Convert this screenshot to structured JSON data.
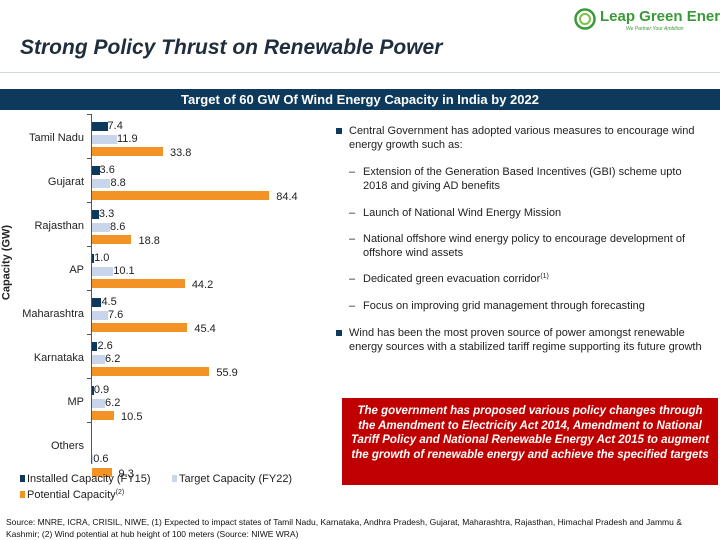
{
  "header": {
    "title": "Strong Policy Thrust on Renewable Power",
    "logo_name": "Leap Green Energy",
    "logo_tagline": "We Partner Your Ambition"
  },
  "banner": "Target of 60 GW Of Wind Energy Capacity in India by 2022",
  "chart_data": {
    "type": "bar",
    "orientation": "horizontal",
    "ylabel": "Capacity (GW)",
    "categories": [
      "Tamil Nadu",
      "Gujarat",
      "Rajasthan",
      "AP",
      "Maharashtra",
      "Karnataka",
      "MP",
      "Others"
    ],
    "series": [
      {
        "name": "Installed Capacity (FY15)",
        "color": "#0d3a5c",
        "values": [
          7.4,
          3.6,
          3.3,
          1.0,
          4.5,
          2.6,
          0.9,
          null
        ]
      },
      {
        "name": "Target Capacity (FY22)",
        "color": "#c9d5ea",
        "values": [
          11.9,
          8.8,
          8.6,
          10.1,
          7.6,
          6.2,
          6.2,
          0.6
        ]
      },
      {
        "name": "Potential Capacity",
        "name_superscript": "(2)",
        "color": "#f39325",
        "values": [
          33.8,
          84.4,
          18.8,
          44.2,
          45.4,
          55.9,
          10.5,
          9.3
        ]
      }
    ]
  },
  "bullets": [
    {
      "text": "Central Government has adopted various measures to encourage wind energy growth such as:"
    },
    {
      "text": "Wind has been the most proven source of power amongst renewable energy sources with a stabilized tariff regime supporting its future growth"
    }
  ],
  "sub_bullets": [
    {
      "text": "Extension of the Generation Based Incentives (GBI) scheme upto 2018 and giving AD benefits"
    },
    {
      "text": "Launch of National Wind Energy Mission"
    },
    {
      "text": "National offshore wind energy policy to encourage development of offshore wind assets"
    },
    {
      "text": "Dedicated green evacuation corridor",
      "sup": "(1)"
    },
    {
      "text": "Focus on improving grid management through forecasting"
    }
  ],
  "sub_dash": "–",
  "callout": "The government has proposed various policy changes through the Amendment to Electricity Act 2014, Amendment to National Tariff Policy and National Renewable Energy Act 2015 to augment the growth of renewable energy and achieve the specified targets",
  "source": "Source: MNRE, ICRA, CRISIL, NIWE, (1) Expected to impact states of Tamil Nadu, Karnataka, Andhra Pradesh, Gujarat, Maharashtra, Rajasthan, Himachal Pradesh and Jammu & Kashmir; (2) Wind potential at hub height of 100 meters (Source: NIWE WRA)"
}
